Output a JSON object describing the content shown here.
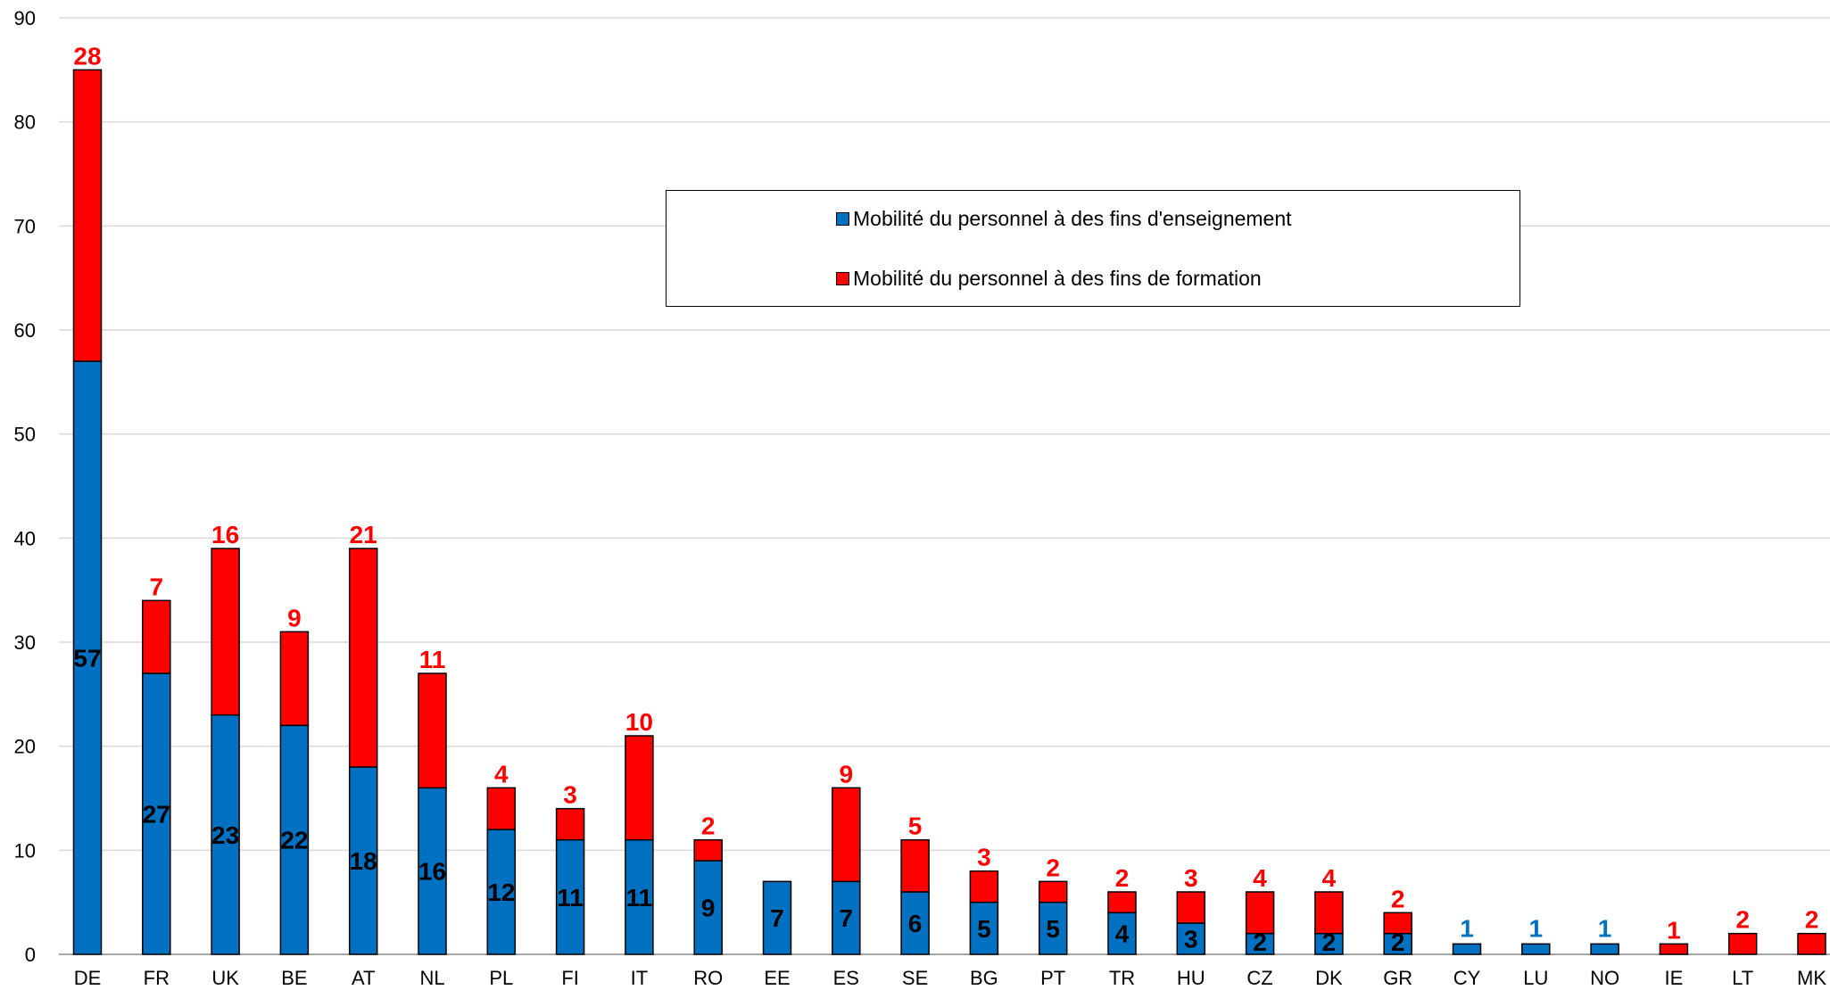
{
  "chart_data": {
    "type": "bar",
    "stacked": true,
    "title": "",
    "xlabel": "",
    "ylabel": "",
    "ylim": [
      0,
      90
    ],
    "yticks": [
      0,
      10,
      20,
      30,
      40,
      50,
      60,
      70,
      80,
      90
    ],
    "grid": true,
    "legend_position": "top-center",
    "categories": [
      "DE",
      "FR",
      "UK",
      "BE",
      "AT",
      "NL",
      "PL",
      "FI",
      "IT",
      "RO",
      "EE",
      "ES",
      "SE",
      "BG",
      "PT",
      "TR",
      "HU",
      "CZ",
      "DK",
      "GR",
      "CY",
      "LU",
      "NO",
      "IE",
      "LT",
      "MK"
    ],
    "series": [
      {
        "name": "Mobilité du personnel à des fins d'enseignement",
        "color": "#0070C0",
        "label_color": "#000000",
        "values": [
          57,
          27,
          23,
          22,
          18,
          16,
          12,
          11,
          11,
          9,
          7,
          7,
          6,
          5,
          5,
          4,
          3,
          2,
          2,
          2,
          1,
          1,
          1,
          0,
          0,
          0
        ]
      },
      {
        "name": "Mobilité du personnel à des fins de formation",
        "color": "#FF0000",
        "label_color": "#FF0000",
        "values": [
          28,
          7,
          16,
          9,
          21,
          11,
          4,
          3,
          10,
          2,
          0,
          9,
          5,
          3,
          2,
          2,
          3,
          4,
          4,
          2,
          0,
          0,
          0,
          1,
          2,
          2
        ]
      }
    ],
    "blue_only_label_color": "#0070C0"
  }
}
